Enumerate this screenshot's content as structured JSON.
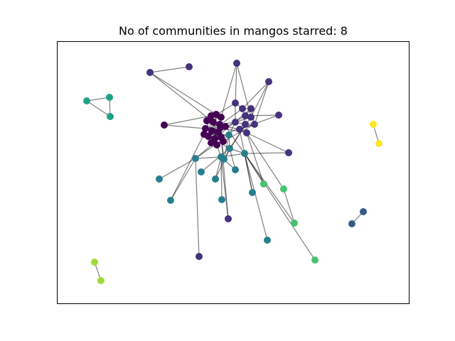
{
  "title": "No of communities in mangos starred: 8",
  "community_colors": [
    "#440154",
    "#46327e",
    "#365c8d",
    "#277f8e",
    "#1fa187",
    "#4ac16d",
    "#a0da39",
    "#fde725"
  ],
  "edge_color": "#000000",
  "nodes": [
    {
      "id": "c0_1",
      "community": 0
    },
    {
      "id": "c0_2",
      "community": 0
    },
    {
      "id": "c0_3",
      "community": 0
    },
    {
      "id": "c0_4",
      "community": 0
    },
    {
      "id": "c0_5",
      "community": 0
    },
    {
      "id": "c0_6",
      "community": 0
    },
    {
      "id": "c0_7",
      "community": 0
    },
    {
      "id": "c0_8",
      "community": 0
    },
    {
      "id": "c0_9",
      "community": 0
    },
    {
      "id": "c0_10",
      "community": 0
    },
    {
      "id": "c0_11",
      "community": 0
    },
    {
      "id": "c0_12",
      "community": 0
    },
    {
      "id": "c0_13",
      "community": 0
    },
    {
      "id": "c0_14",
      "community": 0
    },
    {
      "id": "c0_15",
      "community": 0
    },
    {
      "id": "c0_16",
      "community": 0
    },
    {
      "id": "c0_17",
      "community": 0
    },
    {
      "id": "c0_18",
      "community": 0
    },
    {
      "id": "c0_out",
      "community": 0
    },
    {
      "id": "c1_1",
      "community": 1
    },
    {
      "id": "c1_2",
      "community": 1
    },
    {
      "id": "c1_3",
      "community": 1
    },
    {
      "id": "c1_4",
      "community": 1
    },
    {
      "id": "c1_5",
      "community": 1
    },
    {
      "id": "c1_6",
      "community": 1
    },
    {
      "id": "c1_7",
      "community": 1
    },
    {
      "id": "c1_8",
      "community": 1
    },
    {
      "id": "c1_9",
      "community": 1
    },
    {
      "id": "c1_10",
      "community": 1
    },
    {
      "id": "c1_top",
      "community": 1
    },
    {
      "id": "c1_tr",
      "community": 1
    },
    {
      "id": "c1_r1",
      "community": 1
    },
    {
      "id": "c1_r2",
      "community": 1
    },
    {
      "id": "c1_a",
      "community": 1
    },
    {
      "id": "c1_b",
      "community": 1
    },
    {
      "id": "c1_low1",
      "community": 1
    },
    {
      "id": "c1_low2",
      "community": 1
    },
    {
      "id": "c2_1",
      "community": 2
    },
    {
      "id": "c2_2",
      "community": 2
    },
    {
      "id": "c3_1",
      "community": 3
    },
    {
      "id": "c3_2",
      "community": 3
    },
    {
      "id": "c3_3",
      "community": 3
    },
    {
      "id": "c3_4",
      "community": 3
    },
    {
      "id": "c3_5",
      "community": 3
    },
    {
      "id": "c3_6",
      "community": 3
    },
    {
      "id": "c3_7",
      "community": 3
    },
    {
      "id": "c3_8",
      "community": 3
    },
    {
      "id": "c3_9",
      "community": 3
    },
    {
      "id": "c3_10",
      "community": 3
    },
    {
      "id": "c3_11",
      "community": 3
    },
    {
      "id": "c3_12",
      "community": 3
    },
    {
      "id": "c3_13",
      "community": 3
    },
    {
      "id": "c3_14",
      "community": 3
    },
    {
      "id": "c4_1",
      "community": 4
    },
    {
      "id": "c4_2",
      "community": 4
    },
    {
      "id": "c4_3",
      "community": 4
    },
    {
      "id": "c5_1",
      "community": 5
    },
    {
      "id": "c5_2",
      "community": 5
    },
    {
      "id": "c5_3",
      "community": 5
    },
    {
      "id": "c5_4",
      "community": 5
    },
    {
      "id": "c6_1",
      "community": 6
    },
    {
      "id": "c6_2",
      "community": 6
    },
    {
      "id": "c7_1",
      "community": 7
    },
    {
      "id": "c7_2",
      "community": 7
    }
  ],
  "edges": [
    [
      "c1_a",
      "c1_b"
    ],
    [
      "c4_1",
      "c4_2"
    ],
    [
      "c4_1",
      "c4_3"
    ],
    [
      "c4_2",
      "c4_3"
    ],
    [
      "c7_1",
      "c7_2"
    ],
    [
      "c2_1",
      "c2_2"
    ],
    [
      "c6_1",
      "c6_2"
    ],
    [
      "c0_out",
      "c0_1"
    ],
    [
      "c0_out",
      "c0_7"
    ],
    [
      "c1_top",
      "c1_1"
    ],
    [
      "c1_top",
      "c1_5"
    ],
    [
      "c1_top",
      "c0_3"
    ],
    [
      "c1_tr",
      "c1_2"
    ],
    [
      "c1_tr",
      "c1_5"
    ],
    [
      "c1_tr",
      "c1_8"
    ],
    [
      "c1_r1",
      "c1_4"
    ],
    [
      "c1_r1",
      "c1_9"
    ],
    [
      "c1_r2",
      "c1_10"
    ],
    [
      "c1_r2",
      "c3_3"
    ],
    [
      "c1_low1",
      "c3_2"
    ],
    [
      "c1_low1",
      "c0_12"
    ],
    [
      "c1_low2",
      "c3_1"
    ],
    [
      "c1_a",
      "c0_2"
    ],
    [
      "c1_a",
      "c0_5"
    ],
    [
      "c3_7",
      "c3_1"
    ],
    [
      "c3_8",
      "c3_1"
    ],
    [
      "c3_8",
      "c0_16"
    ],
    [
      "c3_9",
      "c3_4"
    ],
    [
      "c3_10",
      "c3_2"
    ],
    [
      "c3_10",
      "c3_4"
    ],
    [
      "c3_11",
      "c3_2"
    ],
    [
      "c3_11",
      "c3_4"
    ],
    [
      "c3_12",
      "c3_2"
    ],
    [
      "c3_13",
      "c3_3"
    ],
    [
      "c3_13",
      "c1_9"
    ],
    [
      "c3_14",
      "c3_3"
    ],
    [
      "c5_1",
      "c1_10"
    ],
    [
      "c5_1",
      "c3_3"
    ],
    [
      "c5_2",
      "c1_10"
    ],
    [
      "c5_3",
      "c5_2"
    ],
    [
      "c5_3",
      "c3_3"
    ],
    [
      "c5_4",
      "c3_3"
    ],
    [
      "c0_1",
      "c0_2"
    ],
    [
      "c0_2",
      "c0_3"
    ],
    [
      "c0_3",
      "c0_4"
    ],
    [
      "c0_4",
      "c0_5"
    ],
    [
      "c0_5",
      "c0_6"
    ],
    [
      "c0_6",
      "c0_7"
    ],
    [
      "c0_7",
      "c0_8"
    ],
    [
      "c0_8",
      "c0_9"
    ],
    [
      "c0_9",
      "c0_10"
    ],
    [
      "c0_10",
      "c0_11"
    ],
    [
      "c0_11",
      "c0_12"
    ],
    [
      "c0_12",
      "c0_13"
    ],
    [
      "c0_13",
      "c0_14"
    ],
    [
      "c0_14",
      "c0_15"
    ],
    [
      "c0_15",
      "c0_16"
    ],
    [
      "c0_16",
      "c0_17"
    ],
    [
      "c0_17",
      "c0_18"
    ],
    [
      "c0_1",
      "c0_10"
    ],
    [
      "c0_3",
      "c0_12"
    ],
    [
      "c0_5",
      "c0_14"
    ],
    [
      "c0_7",
      "c0_16"
    ],
    [
      "c0_9",
      "c0_18"
    ],
    [
      "c0_2",
      "c0_11"
    ],
    [
      "c0_4",
      "c0_13"
    ],
    [
      "c0_6",
      "c0_15"
    ],
    [
      "c0_8",
      "c0_17"
    ],
    [
      "c1_1",
      "c1_2"
    ],
    [
      "c1_2",
      "c1_3"
    ],
    [
      "c1_3",
      "c1_4"
    ],
    [
      "c1_4",
      "c1_5"
    ],
    [
      "c1_5",
      "c1_6"
    ],
    [
      "c1_6",
      "c1_7"
    ],
    [
      "c1_7",
      "c1_8"
    ],
    [
      "c1_8",
      "c1_9"
    ],
    [
      "c1_9",
      "c1_10"
    ],
    [
      "c1_1",
      "c1_6"
    ],
    [
      "c1_2",
      "c1_7"
    ],
    [
      "c1_3",
      "c1_8"
    ],
    [
      "c1_1",
      "c0_4"
    ],
    [
      "c1_2",
      "c0_8"
    ],
    [
      "c1_3",
      "c0_11"
    ],
    [
      "c1_4",
      "c0_9"
    ],
    [
      "c1_6",
      "c0_6"
    ],
    [
      "c1_7",
      "c0_13"
    ],
    [
      "c1_8",
      "c0_15"
    ],
    [
      "c1_9",
      "c0_17"
    ],
    [
      "c1_10",
      "c0_18"
    ],
    [
      "c1_6",
      "c3_5"
    ],
    [
      "c1_7",
      "c3_6"
    ],
    [
      "c1_5",
      "c3_4"
    ],
    [
      "c3_1",
      "c3_2"
    ],
    [
      "c3_2",
      "c3_3"
    ],
    [
      "c3_1",
      "c3_5"
    ],
    [
      "c3_2",
      "c3_6"
    ],
    [
      "c3_3",
      "c3_4"
    ],
    [
      "c3_4",
      "c3_5"
    ],
    [
      "c3_5",
      "c3_6"
    ],
    [
      "c3_1",
      "c0_12"
    ],
    [
      "c3_2",
      "c0_14"
    ],
    [
      "c3_5",
      "c0_16"
    ],
    [
      "c3_6",
      "c0_18"
    ],
    [
      "c3_4",
      "c0_10"
    ],
    [
      "c3_3",
      "c0_17"
    ]
  ]
}
